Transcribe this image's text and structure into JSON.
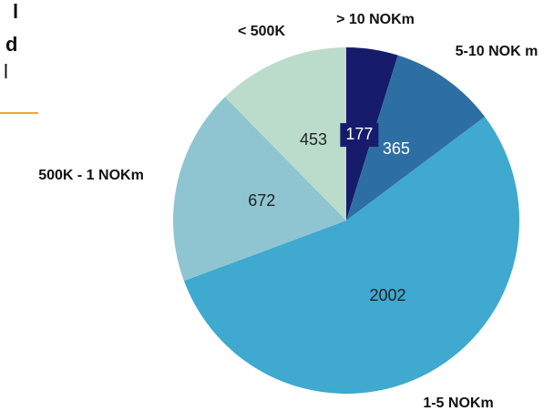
{
  "side_title": [
    "l",
    "d",
    "l"
  ],
  "chart_data": {
    "type": "pie",
    "categories": [
      "> 10 NOKm",
      "5-10 NOK m",
      "1-5 NOKm",
      "500K - 1 NOKm",
      "< 500K"
    ],
    "values": [
      177,
      365,
      2002,
      672,
      453
    ],
    "colors": [
      "#161c6b",
      "#2e6fa3",
      "#3fa9d0",
      "#8ec5d1",
      "#bcdccb"
    ],
    "start_angle": 0,
    "direction": "clockwise"
  }
}
